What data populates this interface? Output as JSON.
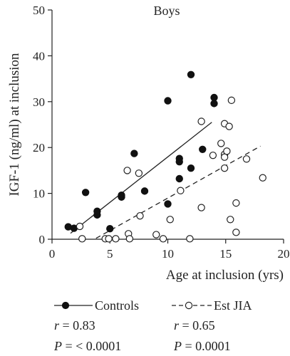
{
  "chart_data": {
    "type": "scatter",
    "title": "Boys",
    "xlabel": "Age at inclusion (yrs)",
    "ylabel": "IGF-1 (ng/ml) at inclusion",
    "xlim": [
      0,
      20
    ],
    "ylim": [
      0,
      50
    ],
    "xticks": [
      0,
      5,
      10,
      15,
      20
    ],
    "yticks": [
      0,
      10,
      20,
      30,
      40,
      50
    ],
    "grid": false,
    "legend_position": "bottom",
    "colors": {
      "ink": "#222222",
      "filled": "#111111",
      "open_fill": "#ffffff"
    },
    "series": [
      {
        "name": "Controls",
        "marker": "filled-circle",
        "line_style": "solid",
        "points": [
          {
            "x": 1.4,
            "y": 2.7
          },
          {
            "x": 1.9,
            "y": 2.4
          },
          {
            "x": 2.9,
            "y": 10.2
          },
          {
            "x": 3.9,
            "y": 5.3
          },
          {
            "x": 3.9,
            "y": 6.1
          },
          {
            "x": 5.0,
            "y": 2.3
          },
          {
            "x": 6.0,
            "y": 9.2
          },
          {
            "x": 6.0,
            "y": 9.6
          },
          {
            "x": 7.1,
            "y": 18.7
          },
          {
            "x": 8.0,
            "y": 10.5
          },
          {
            "x": 10.0,
            "y": 30.2
          },
          {
            "x": 10.0,
            "y": 7.7
          },
          {
            "x": 11.0,
            "y": 17.6
          },
          {
            "x": 11.0,
            "y": 16.9
          },
          {
            "x": 11.0,
            "y": 13.2
          },
          {
            "x": 12.0,
            "y": 35.9
          },
          {
            "x": 12.0,
            "y": 15.5
          },
          {
            "x": 13.0,
            "y": 19.6
          },
          {
            "x": 14.0,
            "y": 30.9
          },
          {
            "x": 14.0,
            "y": 29.6
          }
        ],
        "fit_line": {
          "x": [
            1.6,
            13.8
          ],
          "y": [
            1.3,
            25.5
          ]
        },
        "stats": {
          "r": "0.83",
          "P": "< 0.0001"
        }
      },
      {
        "name": "Est JIA",
        "marker": "open-circle",
        "line_style": "dashed",
        "points": [
          {
            "x": 2.4,
            "y": 2.8
          },
          {
            "x": 2.6,
            "y": 0.1
          },
          {
            "x": 4.6,
            "y": 0.1
          },
          {
            "x": 4.9,
            "y": 0.1
          },
          {
            "x": 5.5,
            "y": 0.1
          },
          {
            "x": 6.5,
            "y": 15.0
          },
          {
            "x": 6.6,
            "y": 1.2
          },
          {
            "x": 6.7,
            "y": 0.1
          },
          {
            "x": 7.5,
            "y": 14.4
          },
          {
            "x": 7.6,
            "y": 5.1
          },
          {
            "x": 9.0,
            "y": 1.0
          },
          {
            "x": 9.6,
            "y": 0.1
          },
          {
            "x": 10.2,
            "y": 4.3
          },
          {
            "x": 11.1,
            "y": 10.6
          },
          {
            "x": 11.9,
            "y": 0.1
          },
          {
            "x": 12.9,
            "y": 25.7
          },
          {
            "x": 12.9,
            "y": 6.9
          },
          {
            "x": 13.9,
            "y": 18.3
          },
          {
            "x": 14.6,
            "y": 20.9
          },
          {
            "x": 14.9,
            "y": 25.2
          },
          {
            "x": 14.9,
            "y": 18.5
          },
          {
            "x": 14.9,
            "y": 17.9
          },
          {
            "x": 14.9,
            "y": 15.5
          },
          {
            "x": 15.1,
            "y": 19.2
          },
          {
            "x": 15.3,
            "y": 24.6
          },
          {
            "x": 15.4,
            "y": 4.3
          },
          {
            "x": 15.5,
            "y": 30.3
          },
          {
            "x": 15.9,
            "y": 7.9
          },
          {
            "x": 15.9,
            "y": 1.5
          },
          {
            "x": 16.8,
            "y": 17.5
          },
          {
            "x": 18.2,
            "y": 13.4
          }
        ],
        "fit_line": {
          "x": [
            3.8,
            18.0
          ],
          "y": [
            0.2,
            20.3
          ]
        },
        "stats": {
          "r": "0.65",
          "P": "0.0001"
        }
      }
    ]
  },
  "labels": {
    "r": "r",
    "P": "P",
    "equals": " = "
  }
}
